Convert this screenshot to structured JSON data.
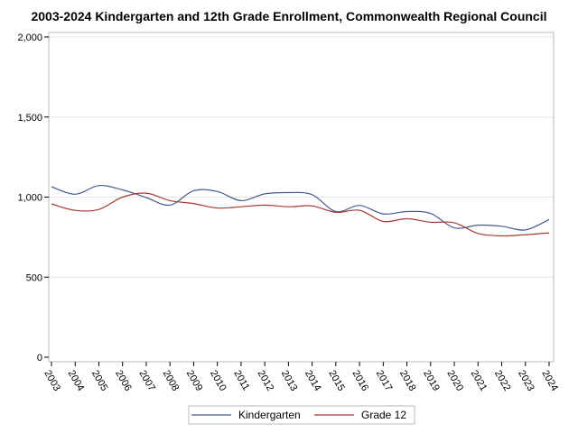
{
  "chart_data": {
    "type": "line",
    "title": "2003-2024 Kindergarten and 12th Grade Enrollment, Commonwealth Regional Council",
    "xlabel": "",
    "ylabel": "",
    "x": [
      "2003",
      "2004",
      "2005",
      "2006",
      "2007",
      "2008",
      "2009",
      "2010",
      "2011",
      "2012",
      "2013",
      "2014",
      "2015",
      "2016",
      "2017",
      "2018",
      "2019",
      "2020",
      "2021",
      "2022",
      "2023",
      "2024"
    ],
    "ylim": [
      0,
      2000
    ],
    "yticks": [
      0,
      500,
      1000,
      1500,
      2000
    ],
    "ytick_labels": [
      "0",
      "500",
      "1,000",
      "1,500",
      "2,000"
    ],
    "grid": "horizontal",
    "legend_position": "bottom",
    "series": [
      {
        "name": "Kindergarten",
        "color": "#4a5a8e",
        "values": [
          1065,
          1018,
          1072,
          1045,
          997,
          950,
          1040,
          1035,
          978,
          1020,
          1028,
          1015,
          910,
          948,
          895,
          910,
          898,
          808,
          825,
          818,
          795,
          860
        ]
      },
      {
        "name": "Grade 12",
        "color": "#a83a32",
        "values": [
          958,
          917,
          923,
          1000,
          1025,
          978,
          960,
          932,
          940,
          950,
          940,
          945,
          905,
          918,
          848,
          865,
          843,
          840,
          773,
          758,
          765,
          777
        ]
      }
    ]
  }
}
